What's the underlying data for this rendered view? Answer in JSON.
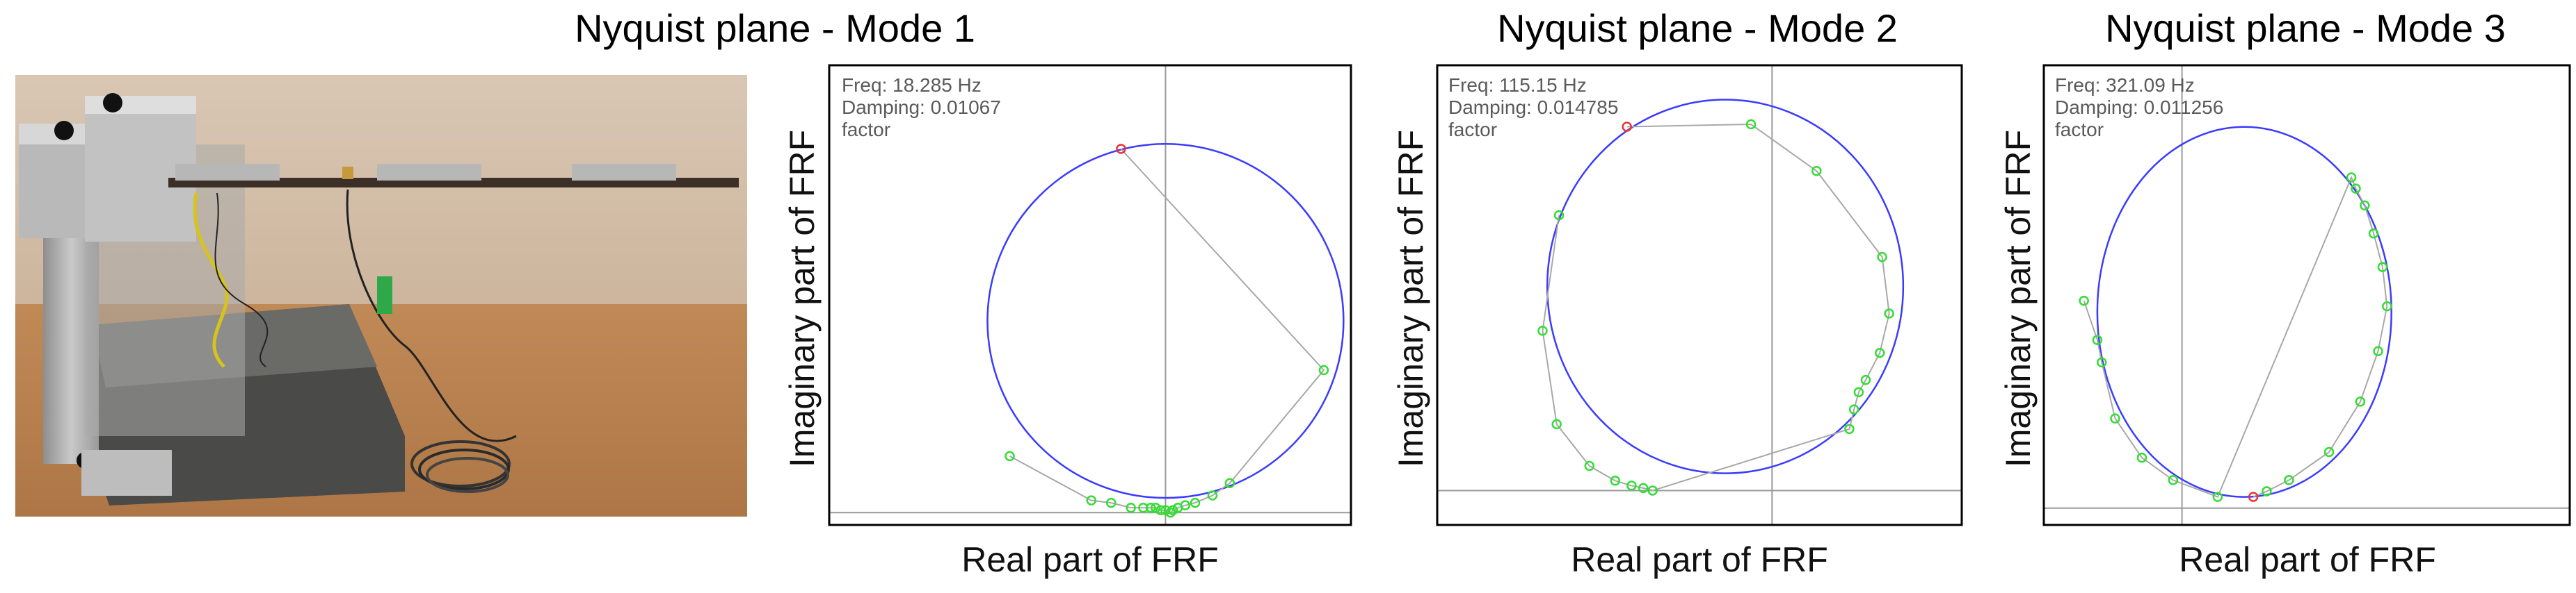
{
  "photo": {
    "subject": "cantilever-beam-test-rig"
  },
  "colors": {
    "circle": "#3b3bff",
    "path": "#a8a8a8",
    "point": "#33dd33",
    "selected_point": "#ee3333",
    "axes": "#9a9a9a",
    "frame": "#000000"
  },
  "chart_data": [
    {
      "type": "scatter",
      "title": "Nyquist plane - Mode 1",
      "xlabel": "Real part of FRF",
      "ylabel": "Imaginary part of FRF",
      "info": {
        "freq": "Freq: 18.285 Hz",
        "damping": "Damping: 0.01067",
        "damping_cont": "factor"
      },
      "grid": false,
      "xlim": [
        -1.36,
        0.75
      ],
      "ylim": [
        -0.05,
        1.82
      ],
      "fitted_circle": {
        "cx": 0,
        "cy": 0.78,
        "r": 0.72
      },
      "selected_point": {
        "x": -0.18,
        "y": 1.48
      },
      "points": [
        {
          "x": 0.64,
          "y": 0.58
        },
        {
          "x": 0.26,
          "y": 0.12
        },
        {
          "x": 0.19,
          "y": 0.07
        },
        {
          "x": 0.12,
          "y": 0.04
        },
        {
          "x": 0.08,
          "y": 0.03
        },
        {
          "x": 0.05,
          "y": 0.02
        },
        {
          "x": 0.03,
          "y": 0.01
        },
        {
          "x": 0.02,
          "y": 0.0
        },
        {
          "x": 0.0,
          "y": 0.01
        },
        {
          "x": -0.02,
          "y": 0.01
        },
        {
          "x": -0.04,
          "y": 0.02
        },
        {
          "x": -0.06,
          "y": 0.02
        },
        {
          "x": -0.09,
          "y": 0.02
        },
        {
          "x": -0.14,
          "y": 0.02
        },
        {
          "x": -0.22,
          "y": 0.04
        },
        {
          "x": -0.3,
          "y": 0.05
        },
        {
          "x": -0.63,
          "y": 0.23
        }
      ]
    },
    {
      "type": "scatter",
      "title": "Nyquist plane - Mode 2",
      "xlabel": "Real part of FRF",
      "ylabel": "Imaginary part of FRF",
      "info": {
        "freq": "Freq: 115.15 Hz",
        "damping": "Damping: 0.014785",
        "damping_cont": "factor"
      },
      "grid": false,
      "xlim": [
        -1.43,
        0.81
      ],
      "ylim": [
        -0.14,
        1.73
      ],
      "fitted_circle": {
        "cx": -0.2,
        "cy": 0.83,
        "r": 0.76
      },
      "selected_point": {
        "x": -0.62,
        "y": 1.48
      },
      "points": [
        {
          "x": -0.09,
          "y": 1.49
        },
        {
          "x": 0.19,
          "y": 1.3
        },
        {
          "x": 0.47,
          "y": 0.95
        },
        {
          "x": 0.5,
          "y": 0.72
        },
        {
          "x": 0.46,
          "y": 0.56
        },
        {
          "x": 0.4,
          "y": 0.45
        },
        {
          "x": 0.37,
          "y": 0.4
        },
        {
          "x": 0.35,
          "y": 0.33
        },
        {
          "x": 0.33,
          "y": 0.25
        },
        {
          "x": -0.51,
          "y": 0.0
        },
        {
          "x": -0.55,
          "y": 0.01
        },
        {
          "x": -0.6,
          "y": 0.02
        },
        {
          "x": -0.67,
          "y": 0.04
        },
        {
          "x": -0.78,
          "y": 0.1
        },
        {
          "x": -0.92,
          "y": 0.27
        },
        {
          "x": -0.98,
          "y": 0.65
        },
        {
          "x": -0.91,
          "y": 1.12
        }
      ]
    },
    {
      "type": "scatter",
      "title": "Nyquist plane - Mode 3",
      "xlabel": "Real part of FRF",
      "ylabel": "Imaginary part of FRF",
      "info": {
        "freq": "Freq: 321.09 Hz",
        "damping": "Damping: 0.011256",
        "damping_cont": "factor"
      },
      "grid": false,
      "xlim": [
        -0.31,
        0.87
      ],
      "ylim": [
        -0.03,
        0.79
      ],
      "fitted_circle": {
        "cx": 0.14,
        "cy": 0.35,
        "r": 0.33
      },
      "selected_point": {
        "x": 0.16,
        "y": 0.02
      },
      "points": [
        {
          "x": 0.19,
          "y": 0.03
        },
        {
          "x": 0.24,
          "y": 0.05
        },
        {
          "x": 0.33,
          "y": 0.1
        },
        {
          "x": 0.4,
          "y": 0.19
        },
        {
          "x": 0.44,
          "y": 0.28
        },
        {
          "x": 0.46,
          "y": 0.36
        },
        {
          "x": 0.45,
          "y": 0.43
        },
        {
          "x": 0.43,
          "y": 0.49
        },
        {
          "x": 0.41,
          "y": 0.54
        },
        {
          "x": 0.39,
          "y": 0.57
        },
        {
          "x": 0.38,
          "y": 0.59
        },
        {
          "x": 0.08,
          "y": 0.02
        },
        {
          "x": -0.02,
          "y": 0.05
        },
        {
          "x": -0.09,
          "y": 0.09
        },
        {
          "x": -0.15,
          "y": 0.16
        },
        {
          "x": -0.18,
          "y": 0.26
        },
        {
          "x": -0.19,
          "y": 0.3
        },
        {
          "x": -0.22,
          "y": 0.37
        }
      ]
    }
  ]
}
